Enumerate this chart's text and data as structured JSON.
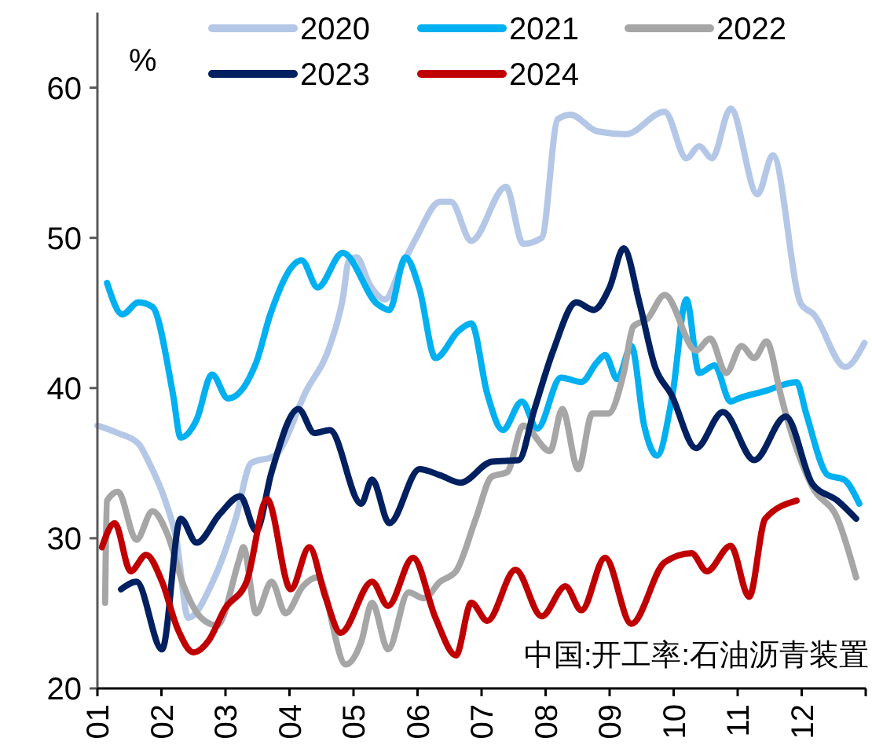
{
  "chart_data": {
    "type": "line",
    "ylabel": "%",
    "annotations": [
      "中国:开工率:石油沥青装置"
    ],
    "xlim": [
      1,
      13
    ],
    "xticks": [
      {
        "value": 1,
        "label": "01"
      },
      {
        "value": 2,
        "label": "02"
      },
      {
        "value": 3,
        "label": "03"
      },
      {
        "value": 4,
        "label": "04"
      },
      {
        "value": 5,
        "label": "05"
      },
      {
        "value": 6,
        "label": "06"
      },
      {
        "value": 7,
        "label": "07"
      },
      {
        "value": 8,
        "label": "08"
      },
      {
        "value": 9,
        "label": "09"
      },
      {
        "value": 10,
        "label": "10"
      },
      {
        "value": 11,
        "label": "11"
      },
      {
        "value": 12,
        "label": "12"
      },
      {
        "value": 13,
        "label": null
      }
    ],
    "ylim": [
      20,
      65
    ],
    "yticks": [
      20,
      30,
      40,
      50,
      60
    ],
    "grid": false,
    "legend": "top",
    "marker": "none",
    "line_style": "solid",
    "series": [
      {
        "name": "2020",
        "color": "#b4c7e7",
        "x": [
          1.0,
          1.32,
          1.64,
          1.81,
          2.06,
          2.23,
          2.42,
          2.79,
          3.16,
          3.4,
          3.77,
          4.26,
          4.63,
          4.83,
          4.93,
          5.05,
          5.25,
          5.49,
          5.74,
          5.98,
          6.35,
          6.52,
          6.84,
          7.38,
          7.65,
          7.94,
          8.19,
          8.39,
          8.8,
          9.25,
          9.86,
          10.2,
          10.4,
          10.6,
          10.89,
          11.31,
          11.55,
          11.99,
          12.19,
          12.68,
          12.98
        ],
        "values": [
          37.5,
          37,
          36.3,
          35,
          32.5,
          30,
          24.7,
          27,
          31.3,
          35,
          35.5,
          39.8,
          42.8,
          45.9,
          48.5,
          48.7,
          46.9,
          45.9,
          48,
          50,
          52.4,
          52.4,
          49.8,
          53.4,
          49.6,
          50,
          57.9,
          58.2,
          57.1,
          56.9,
          58.4,
          55.3,
          56.1,
          55.3,
          58.6,
          52.9,
          55.5,
          45.6,
          44.9,
          41.4,
          43
        ]
      },
      {
        "name": "2021",
        "color": "#00b0f0",
        "x": [
          1.15,
          1.39,
          1.64,
          1.86,
          2.18,
          2.3,
          2.55,
          2.79,
          3.04,
          3.48,
          3.7,
          4.19,
          4.44,
          4.83,
          5.37,
          5.56,
          5.81,
          6.03,
          6.28,
          6.64,
          6.84,
          7.09,
          7.33,
          7.63,
          7.87,
          8.24,
          8.56,
          8.8,
          8.93,
          9.12,
          9.34,
          9.54,
          9.74,
          9.98,
          10.2,
          10.4,
          10.64,
          10.89,
          11.01,
          11.43,
          11.92,
          12.07,
          12.41,
          12.66,
          12.9
        ],
        "values": [
          47,
          44.9,
          45.7,
          45.4,
          39.6,
          36.7,
          37.9,
          40.9,
          39.3,
          41.7,
          44.9,
          48.5,
          46.7,
          49,
          45.6,
          45.2,
          48.7,
          46.6,
          42,
          43.8,
          44.3,
          39.6,
          37.2,
          39.1,
          37.3,
          40.7,
          40.4,
          41.7,
          42.2,
          40.6,
          42.8,
          37.5,
          35.5,
          39.5,
          45.9,
          41,
          41.5,
          39.1,
          39.3,
          39.8,
          40.4,
          38.3,
          34.2,
          33.9,
          32.3
        ]
      },
      {
        "name": "2022",
        "color": "#a6a6a6",
        "x": [
          1.12,
          1.15,
          1.32,
          1.61,
          1.86,
          2.1,
          2.35,
          2.62,
          2.87,
          3.21,
          3.28,
          3.48,
          3.72,
          3.94,
          4.21,
          4.44,
          4.88,
          5.12,
          5.29,
          5.54,
          5.86,
          6.1,
          6.35,
          6.6,
          6.91,
          7.16,
          7.4,
          7.65,
          8.07,
          8.26,
          8.51,
          8.73,
          8.98,
          9.22,
          9.37,
          9.59,
          9.86,
          10.35,
          10.57,
          10.82,
          11.06,
          11.26,
          11.45,
          11.67,
          11.75,
          12.17,
          12.56,
          12.85
        ],
        "values": [
          25.7,
          32.5,
          33.1,
          29.9,
          31.8,
          30.2,
          26.8,
          24.7,
          24.2,
          28.5,
          29.4,
          25,
          27.1,
          25,
          26.8,
          27.4,
          21.6,
          23.1,
          25.7,
          22.6,
          26.4,
          26,
          27.1,
          27.8,
          31.3,
          34.1,
          34.4,
          37.5,
          35.8,
          38.6,
          34.6,
          38.3,
          38.3,
          41,
          44.1,
          44.6,
          46.2,
          42.5,
          43.3,
          41,
          42.8,
          42,
          43.1,
          39.6,
          38.3,
          33.4,
          31.3,
          27.4
        ]
      },
      {
        "name": "2023",
        "color": "#002060",
        "x": [
          1.37,
          1.61,
          2.01,
          2.3,
          2.55,
          2.91,
          3.23,
          3.48,
          3.72,
          4.14,
          4.39,
          4.63,
          5.12,
          5.29,
          5.56,
          6.03,
          6.35,
          6.67,
          7.16,
          7.58,
          7.82,
          8.12,
          8.48,
          8.75,
          9.0,
          9.22,
          9.47,
          9.71,
          9.96,
          10.35,
          10.77,
          11.26,
          11.75,
          12.17,
          12.56,
          12.85
        ],
        "values": [
          26.6,
          27.1,
          22.6,
          31.3,
          29.7,
          31.6,
          32.8,
          30.5,
          34.4,
          38.6,
          37,
          37.2,
          32.3,
          33.9,
          31,
          34.6,
          34.2,
          33.7,
          35.1,
          35.2,
          38.5,
          42.5,
          45.7,
          45.2,
          46.7,
          49.3,
          45.6,
          41.4,
          39.6,
          36,
          38.4,
          35.2,
          38.1,
          33.6,
          32.5,
          31.3
        ]
      },
      {
        "name": "2024",
        "color": "#c00000",
        "x": [
          1.07,
          1.27,
          1.52,
          1.76,
          2.01,
          2.25,
          2.5,
          2.74,
          2.99,
          3.33,
          3.65,
          4.02,
          4.31,
          4.56,
          4.8,
          5.29,
          5.54,
          5.93,
          6.28,
          6.6,
          6.84,
          7.09,
          7.53,
          7.94,
          8.31,
          8.56,
          8.93,
          9.34,
          9.86,
          10.28,
          10.52,
          10.89,
          11.18,
          11.43,
          11.92
        ],
        "values": [
          29.4,
          31,
          27.8,
          28.9,
          27.1,
          24,
          22.4,
          23.2,
          25.3,
          27.1,
          32.6,
          26.6,
          29.4,
          26.1,
          23.7,
          27.1,
          25.5,
          28.7,
          24.7,
          22.2,
          25.7,
          24.5,
          27.9,
          24.8,
          26.8,
          25.2,
          28.7,
          24.3,
          28.4,
          29,
          27.8,
          29.5,
          26.1,
          31.3,
          32.5
        ]
      }
    ]
  }
}
